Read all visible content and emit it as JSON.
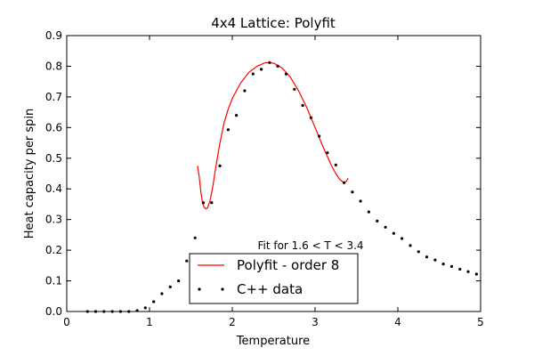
{
  "chart_data": {
    "type": "line",
    "title": "4x4 Lattice: Polyfit",
    "xlabel": "Temperature",
    "ylabel": "Heat capacity per spin",
    "xlim": [
      0,
      5
    ],
    "ylim": [
      0,
      0.9
    ],
    "xticks": [
      "0",
      "1",
      "2",
      "3",
      "4",
      "5"
    ],
    "yticks": [
      "0.0",
      "0.1",
      "0.2",
      "0.3",
      "0.4",
      "0.5",
      "0.6",
      "0.7",
      "0.8",
      "0.9"
    ],
    "grid": false,
    "legend": {
      "placement": "lower-center"
    },
    "annotation": "Fit for 1.6 < T < 3.4",
    "colors": {
      "fit": "#ff0000",
      "data": "#000000"
    },
    "series": [
      {
        "name": "Polyfit - order 8",
        "style": "line",
        "x": [
          1.58,
          1.6,
          1.62,
          1.64,
          1.66,
          1.68,
          1.7,
          1.73,
          1.76,
          1.8,
          1.85,
          1.9,
          1.95,
          2.0,
          2.1,
          2.2,
          2.3,
          2.4,
          2.5,
          2.6,
          2.7,
          2.8,
          2.9,
          3.0,
          3.1,
          3.2,
          3.25,
          3.3,
          3.35,
          3.38,
          3.4
        ],
        "y": [
          0.475,
          0.44,
          0.39,
          0.355,
          0.34,
          0.335,
          0.338,
          0.36,
          0.4,
          0.47,
          0.55,
          0.615,
          0.66,
          0.695,
          0.745,
          0.78,
          0.8,
          0.812,
          0.81,
          0.795,
          0.765,
          0.72,
          0.665,
          0.6,
          0.535,
          0.475,
          0.45,
          0.43,
          0.42,
          0.425,
          0.435
        ]
      },
      {
        "name": "C++ data",
        "style": "points",
        "x": [
          0.25,
          0.35,
          0.45,
          0.55,
          0.65,
          0.75,
          0.85,
          0.95,
          1.05,
          1.15,
          1.25,
          1.35,
          1.45,
          1.55,
          1.65,
          1.75,
          1.85,
          1.95,
          2.05,
          2.15,
          2.25,
          2.35,
          2.45,
          2.55,
          2.65,
          2.75,
          2.85,
          2.95,
          3.05,
          3.15,
          3.25,
          3.35,
          3.45,
          3.55,
          3.65,
          3.75,
          3.85,
          3.95,
          4.05,
          4.15,
          4.25,
          4.35,
          4.45,
          4.55,
          4.65,
          4.75,
          4.85,
          4.95
        ],
        "y": [
          0.0,
          0.0,
          0.0,
          0.0,
          0.0,
          0.0,
          0.003,
          0.012,
          0.032,
          0.058,
          0.08,
          0.1,
          0.165,
          0.24,
          0.355,
          0.355,
          0.475,
          0.593,
          0.64,
          0.72,
          0.775,
          0.79,
          0.812,
          0.8,
          0.775,
          0.725,
          0.672,
          0.632,
          0.572,
          0.518,
          0.478,
          0.42,
          0.39,
          0.36,
          0.325,
          0.295,
          0.275,
          0.255,
          0.238,
          0.215,
          0.195,
          0.178,
          0.168,
          0.155,
          0.147,
          0.138,
          0.13,
          0.122
        ]
      }
    ]
  }
}
